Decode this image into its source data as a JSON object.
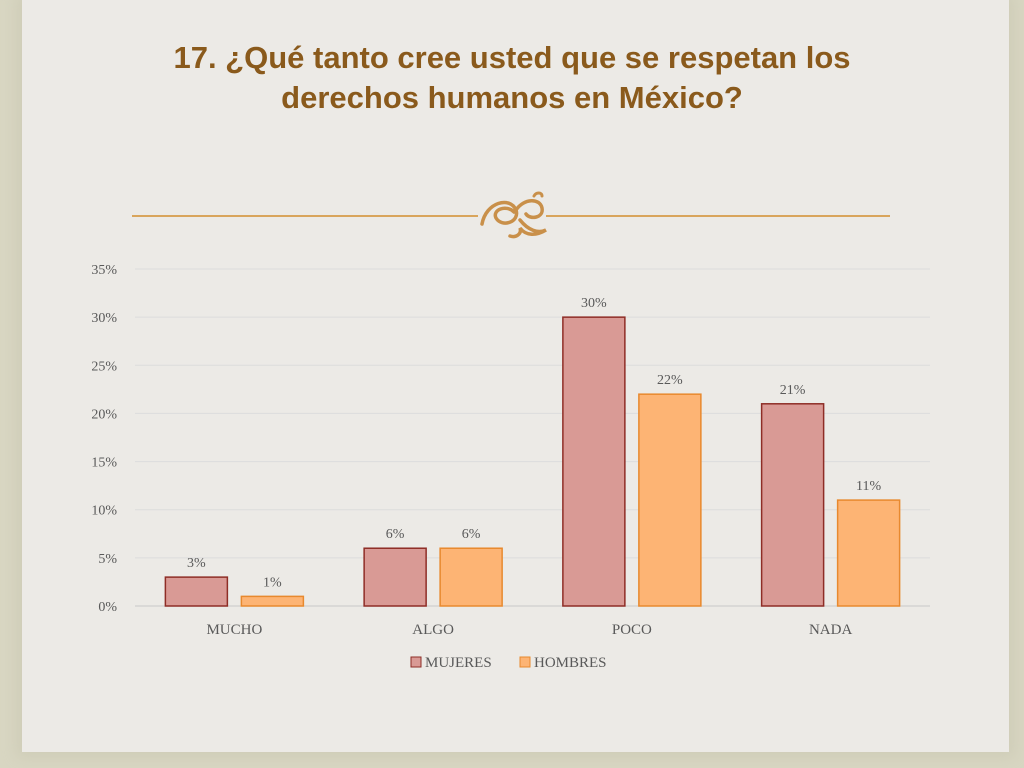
{
  "slide": {
    "title": "17. ¿Qué tanto cree usted que se respetan los derechos humanos en México?",
    "ornament_icon": "flourish-icon"
  },
  "colors": {
    "title": "#8a5a1c",
    "accent_line": "#d9a55c",
    "mujeres_fill": "#d99a95",
    "mujeres_stroke": "#8e2d26",
    "hombres_fill": "#fdb474",
    "hombres_stroke": "#e8892e",
    "axis_text": "#595959",
    "grid": "#dcdcdc"
  },
  "chart_data": {
    "type": "bar",
    "categories": [
      "MUCHO",
      "ALGO",
      "POCO",
      "NADA"
    ],
    "series": [
      {
        "name": "MUJERES",
        "values": [
          3,
          6,
          30,
          21
        ],
        "labels": [
          "3%",
          "6%",
          "30%",
          "21%"
        ]
      },
      {
        "name": "HOMBRES",
        "values": [
          1,
          6,
          22,
          11
        ],
        "labels": [
          "1%",
          "6%",
          "22%",
          "11%"
        ]
      }
    ],
    "y_ticks": [
      "0%",
      "5%",
      "10%",
      "15%",
      "20%",
      "25%",
      "30%",
      "35%"
    ],
    "ylim": [
      0,
      35
    ],
    "y_step": 5,
    "grid": true,
    "legend_position": "bottom"
  }
}
